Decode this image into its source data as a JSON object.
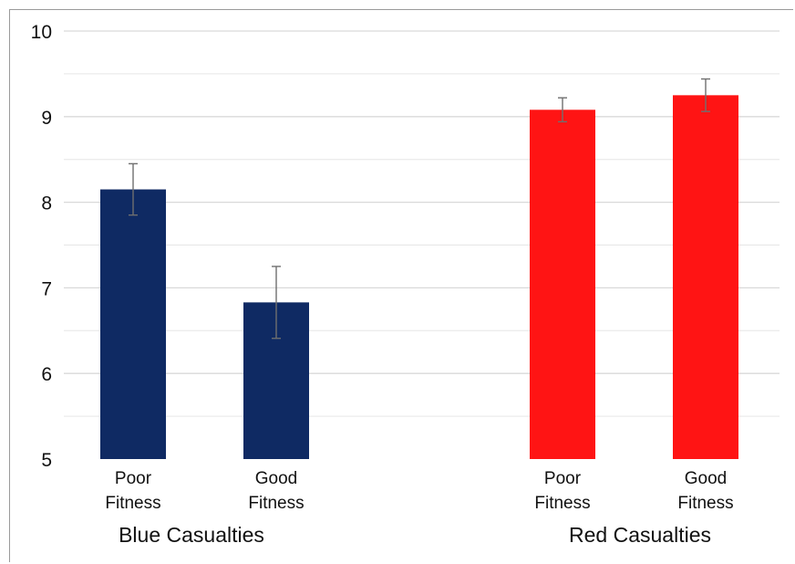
{
  "chart_data": {
    "type": "bar",
    "title": "",
    "xlabel": "",
    "ylabel": "",
    "ylim": [
      5,
      10
    ],
    "yticks": [
      5,
      6,
      7,
      8,
      9,
      10
    ],
    "grid": true,
    "groups": [
      {
        "label": "Blue Casualties",
        "color": "#0f2a63",
        "bars": [
          {
            "category": [
              "Poor",
              "Fitness"
            ],
            "value": 8.15,
            "error": 0.3
          },
          {
            "category": [
              "Good",
              "Fitness"
            ],
            "value": 6.83,
            "error": 0.42
          }
        ]
      },
      {
        "label": "Red Casualties",
        "color": "#ff1414",
        "bars": [
          {
            "category": [
              "Poor",
              "Fitness"
            ],
            "value": 9.08,
            "error": 0.14
          },
          {
            "category": [
              "Good",
              "Fitness"
            ],
            "value": 9.25,
            "error": 0.19
          }
        ]
      }
    ]
  }
}
